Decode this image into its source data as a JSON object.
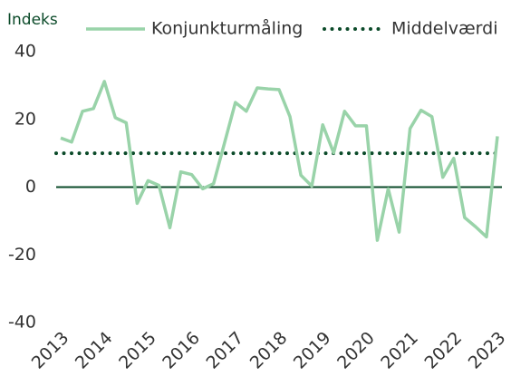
{
  "chart_data": {
    "type": "line",
    "ylabel": "Indeks",
    "x": [
      2013,
      2013.25,
      2013.5,
      2013.75,
      2014,
      2014.25,
      2014.5,
      2014.75,
      2015,
      2015.25,
      2015.5,
      2015.75,
      2016,
      2016.25,
      2016.5,
      2016.75,
      2017,
      2017.25,
      2017.5,
      2017.75,
      2018,
      2018.25,
      2018.5,
      2018.75,
      2019,
      2019.25,
      2019.5,
      2019.75,
      2020,
      2020.25,
      2020.5,
      2020.75,
      2021,
      2021.25,
      2021.5,
      2021.75,
      2022,
      2022.25,
      2022.5,
      2022.75,
      2023
    ],
    "series": [
      {
        "name": "Konjunkturmåling",
        "color": "#99d3a9",
        "values": [
          14.5,
          13.3,
          22.4,
          23.2,
          31.2,
          20.5,
          19,
          -4.8,
          1.9,
          0.5,
          -12,
          4.5,
          3.7,
          -0.5,
          1,
          13,
          25,
          22.4,
          29.3,
          29,
          28.8,
          20.8,
          3.5,
          0.3,
          18.4,
          10.1,
          22.4,
          18.1,
          18.1,
          -15.7,
          -0.5,
          -13.3,
          17.3,
          22.7,
          20.8,
          2.9,
          8.5,
          -9,
          -11.7,
          -14.7,
          15
        ]
      }
    ],
    "mean_line": {
      "name": "Middelværdi",
      "value": 10,
      "color": "#0b4a29"
    },
    "zero_color": "#0b4a29",
    "xlim": [
      2013,
      2023
    ],
    "xticks": [
      2013,
      2014,
      2015,
      2016,
      2017,
      2018,
      2019,
      2020,
      2021,
      2022,
      2023
    ],
    "ylim": [
      -40,
      40
    ],
    "yticks": [
      -40,
      -20,
      0,
      20,
      40
    ],
    "grid": false
  }
}
